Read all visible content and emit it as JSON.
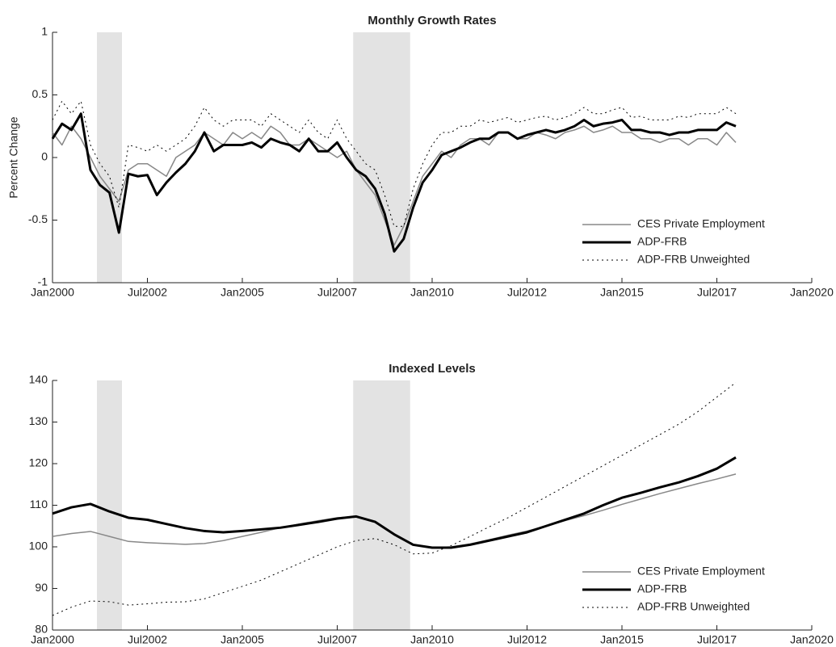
{
  "chart_data": [
    {
      "type": "line",
      "title": "Monthly Growth Rates",
      "ylabel": "Percent Change",
      "xlim": [
        2000,
        2020
      ],
      "ylim": [
        -1,
        1
      ],
      "yticks": [
        -1,
        -0.5,
        0,
        0.5,
        1
      ],
      "xticks": [
        {
          "value": 2000,
          "label": "Jan2000"
        },
        {
          "value": 2002.5,
          "label": "Jul2002"
        },
        {
          "value": 2005,
          "label": "Jan2005"
        },
        {
          "value": 2007.5,
          "label": "Jul2007"
        },
        {
          "value": 2010,
          "label": "Jan2010"
        },
        {
          "value": 2012.5,
          "label": "Jul2012"
        },
        {
          "value": 2015,
          "label": "Jan2015"
        },
        {
          "value": 2017.5,
          "label": "Jul2017"
        },
        {
          "value": 2020,
          "label": "Jan2020"
        }
      ],
      "legend": "lower right",
      "shaded_periods": [
        [
          2001.17,
          2001.83
        ],
        [
          2007.92,
          2009.42
        ]
      ],
      "shade_color": "#e3e3e3",
      "x": [
        2000,
        2000.25,
        2000.5,
        2000.75,
        2001,
        2001.25,
        2001.5,
        2001.75,
        2002,
        2002.25,
        2002.5,
        2002.75,
        2003,
        2003.25,
        2003.5,
        2003.75,
        2004,
        2004.25,
        2004.5,
        2004.75,
        2005,
        2005.25,
        2005.5,
        2005.75,
        2006,
        2006.25,
        2006.5,
        2006.75,
        2007,
        2007.25,
        2007.5,
        2007.75,
        2008,
        2008.25,
        2008.5,
        2008.75,
        2009,
        2009.25,
        2009.5,
        2009.75,
        2010,
        2010.25,
        2010.5,
        2010.75,
        2011,
        2011.25,
        2011.5,
        2011.75,
        2012,
        2012.25,
        2012.5,
        2012.75,
        2013,
        2013.25,
        2013.5,
        2013.75,
        2014,
        2014.25,
        2014.5,
        2014.75,
        2015,
        2015.25,
        2015.5,
        2015.75,
        2016,
        2016.25,
        2016.5,
        2016.75,
        2017,
        2017.25,
        2017.5,
        2017.75,
        2018
      ],
      "series": [
        {
          "name": "CES Private Employment",
          "color": "#888888",
          "style": "solid",
          "values": [
            0.2,
            0.1,
            0.25,
            0.15,
            0.0,
            -0.15,
            -0.25,
            -0.35,
            -0.1,
            -0.05,
            -0.05,
            -0.1,
            -0.15,
            0.0,
            0.05,
            0.1,
            0.2,
            0.15,
            0.1,
            0.2,
            0.15,
            0.2,
            0.15,
            0.25,
            0.2,
            0.1,
            0.1,
            0.15,
            0.1,
            0.05,
            0.0,
            0.05,
            -0.1,
            -0.2,
            -0.3,
            -0.5,
            -0.7,
            -0.55,
            -0.35,
            -0.15,
            -0.05,
            0.05,
            0.0,
            0.1,
            0.15,
            0.15,
            0.1,
            0.2,
            0.2,
            0.15,
            0.15,
            0.2,
            0.18,
            0.15,
            0.2,
            0.22,
            0.25,
            0.2,
            0.22,
            0.25,
            0.2,
            0.2,
            0.15,
            0.15,
            0.12,
            0.15,
            0.15,
            0.1,
            0.15,
            0.15,
            0.1,
            0.2,
            0.12
          ]
        },
        {
          "name": "ADP-FRB",
          "color": "#000000",
          "style": "bold",
          "values": [
            0.15,
            0.27,
            0.22,
            0.35,
            -0.1,
            -0.22,
            -0.28,
            -0.6,
            -0.13,
            -0.15,
            -0.14,
            -0.3,
            -0.2,
            -0.12,
            -0.05,
            0.05,
            0.2,
            0.05,
            0.1,
            0.1,
            0.1,
            0.12,
            0.08,
            0.15,
            0.12,
            0.1,
            0.05,
            0.15,
            0.05,
            0.05,
            0.12,
            0.0,
            -0.1,
            -0.15,
            -0.25,
            -0.45,
            -0.75,
            -0.65,
            -0.4,
            -0.2,
            -0.1,
            0.02,
            0.05,
            0.08,
            0.12,
            0.15,
            0.15,
            0.2,
            0.2,
            0.15,
            0.18,
            0.2,
            0.22,
            0.2,
            0.22,
            0.25,
            0.3,
            0.25,
            0.27,
            0.28,
            0.3,
            0.22,
            0.22,
            0.2,
            0.2,
            0.18,
            0.2,
            0.2,
            0.22,
            0.22,
            0.22,
            0.28,
            0.25
          ]
        },
        {
          "name": "ADP-FRB Unweighted",
          "color": "#000000",
          "style": "dotted",
          "values": [
            0.3,
            0.45,
            0.35,
            0.45,
            0.1,
            -0.05,
            -0.15,
            -0.4,
            0.1,
            0.08,
            0.05,
            0.1,
            0.05,
            0.1,
            0.15,
            0.25,
            0.4,
            0.3,
            0.25,
            0.3,
            0.3,
            0.3,
            0.25,
            0.35,
            0.3,
            0.25,
            0.2,
            0.3,
            0.2,
            0.15,
            0.3,
            0.15,
            0.05,
            -0.05,
            -0.1,
            -0.3,
            -0.55,
            -0.55,
            -0.25,
            -0.05,
            0.1,
            0.2,
            0.2,
            0.25,
            0.25,
            0.3,
            0.28,
            0.3,
            0.32,
            0.28,
            0.3,
            0.32,
            0.33,
            0.3,
            0.32,
            0.35,
            0.4,
            0.35,
            0.35,
            0.38,
            0.4,
            0.32,
            0.33,
            0.3,
            0.3,
            0.3,
            0.33,
            0.32,
            0.35,
            0.35,
            0.35,
            0.4,
            0.35
          ]
        }
      ]
    },
    {
      "type": "line",
      "title": "Indexed Levels",
      "xlim": [
        2000,
        2020
      ],
      "ylim": [
        80,
        140
      ],
      "yticks": [
        80,
        90,
        100,
        110,
        120,
        130,
        140
      ],
      "xticks": [
        {
          "value": 2000,
          "label": "Jan2000"
        },
        {
          "value": 2002.5,
          "label": "Jul2002"
        },
        {
          "value": 2005,
          "label": "Jan2005"
        },
        {
          "value": 2007.5,
          "label": "Jul2007"
        },
        {
          "value": 2010,
          "label": "Jan2010"
        },
        {
          "value": 2012.5,
          "label": "Jul2012"
        },
        {
          "value": 2015,
          "label": "Jan2015"
        },
        {
          "value": 2017.5,
          "label": "Jul2017"
        },
        {
          "value": 2020,
          "label": "Jan2020"
        }
      ],
      "legend": "lower right",
      "shaded_periods": [
        [
          2001.17,
          2001.83
        ],
        [
          2007.92,
          2009.42
        ]
      ],
      "shade_color": "#e3e3e3",
      "x": [
        2000,
        2000.5,
        2001,
        2001.5,
        2002,
        2002.5,
        2003,
        2003.5,
        2004,
        2004.5,
        2005,
        2005.5,
        2006,
        2006.5,
        2007,
        2007.5,
        2008,
        2008.5,
        2009,
        2009.5,
        2010,
        2010.5,
        2011,
        2011.5,
        2012,
        2012.5,
        2013,
        2013.5,
        2014,
        2014.5,
        2015,
        2015.5,
        2016,
        2016.5,
        2017,
        2017.5,
        2018
      ],
      "series": [
        {
          "name": "CES Private Employment",
          "color": "#888888",
          "style": "solid",
          "values": [
            102.5,
            103.2,
            103.7,
            102.5,
            101.3,
            101,
            100.8,
            100.6,
            100.8,
            101.5,
            102.5,
            103.5,
            104.6,
            105.5,
            106.3,
            107,
            107.3,
            106,
            103,
            100.5,
            99.8,
            100,
            100.7,
            101.7,
            102.8,
            103.8,
            105,
            106.3,
            107.5,
            108.8,
            110.2,
            111.5,
            112.8,
            114,
            115.2,
            116.3,
            117.5
          ]
        },
        {
          "name": "ADP-FRB",
          "color": "#000000",
          "style": "bold",
          "values": [
            108,
            109.5,
            110.3,
            108.5,
            107,
            106.5,
            105.5,
            104.5,
            103.8,
            103.5,
            103.8,
            104.2,
            104.6,
            105.3,
            106,
            106.8,
            107.3,
            106,
            103,
            100.5,
            99.8,
            99.8,
            100.5,
            101.5,
            102.5,
            103.5,
            105,
            106.5,
            108,
            110,
            111.8,
            113,
            114.3,
            115.5,
            117,
            118.8,
            121.5
          ]
        },
        {
          "name": "ADP-FRB Unweighted",
          "color": "#000000",
          "style": "dotted",
          "values": [
            83.5,
            85.5,
            87,
            86.8,
            86,
            86.3,
            86.7,
            86.8,
            87.5,
            89,
            90.5,
            92,
            94,
            96,
            98,
            100,
            101.5,
            102,
            100.5,
            98.3,
            98.5,
            100.3,
            102.5,
            104.8,
            107,
            109.5,
            112,
            114.5,
            117,
            119.5,
            122,
            124.5,
            127,
            129.5,
            132.5,
            136,
            139.5
          ]
        }
      ]
    }
  ]
}
